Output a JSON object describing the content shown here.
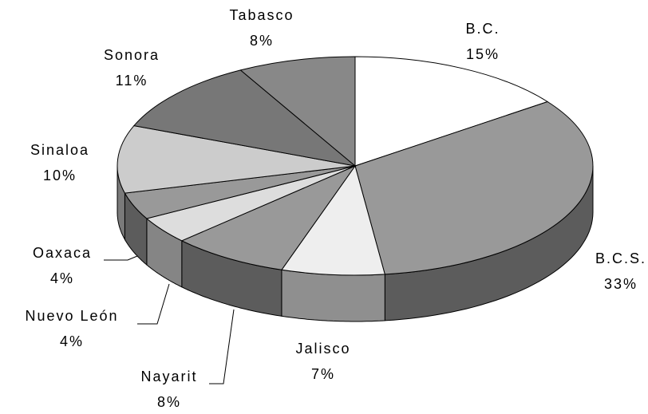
{
  "chart_data": {
    "type": "pie3d",
    "categories": [
      "B.C.",
      "B.C.S.",
      "Jalisco",
      "Nayarit",
      "Nuevo León",
      "Oaxaca",
      "Sinaloa",
      "Sonora",
      "Tabasco"
    ],
    "values": [
      15,
      33,
      7,
      8,
      4,
      4,
      10,
      11,
      8
    ],
    "value_labels": [
      "15%",
      "33%",
      "7%",
      "8%",
      "4%",
      "4%",
      "10%",
      "11%",
      "8%"
    ],
    "colors": [
      "#ffffff",
      "#999999",
      "#eeeeee",
      "#999999",
      "#dddddd",
      "#999999",
      "#cccccc",
      "#777777",
      "#888888"
    ]
  }
}
